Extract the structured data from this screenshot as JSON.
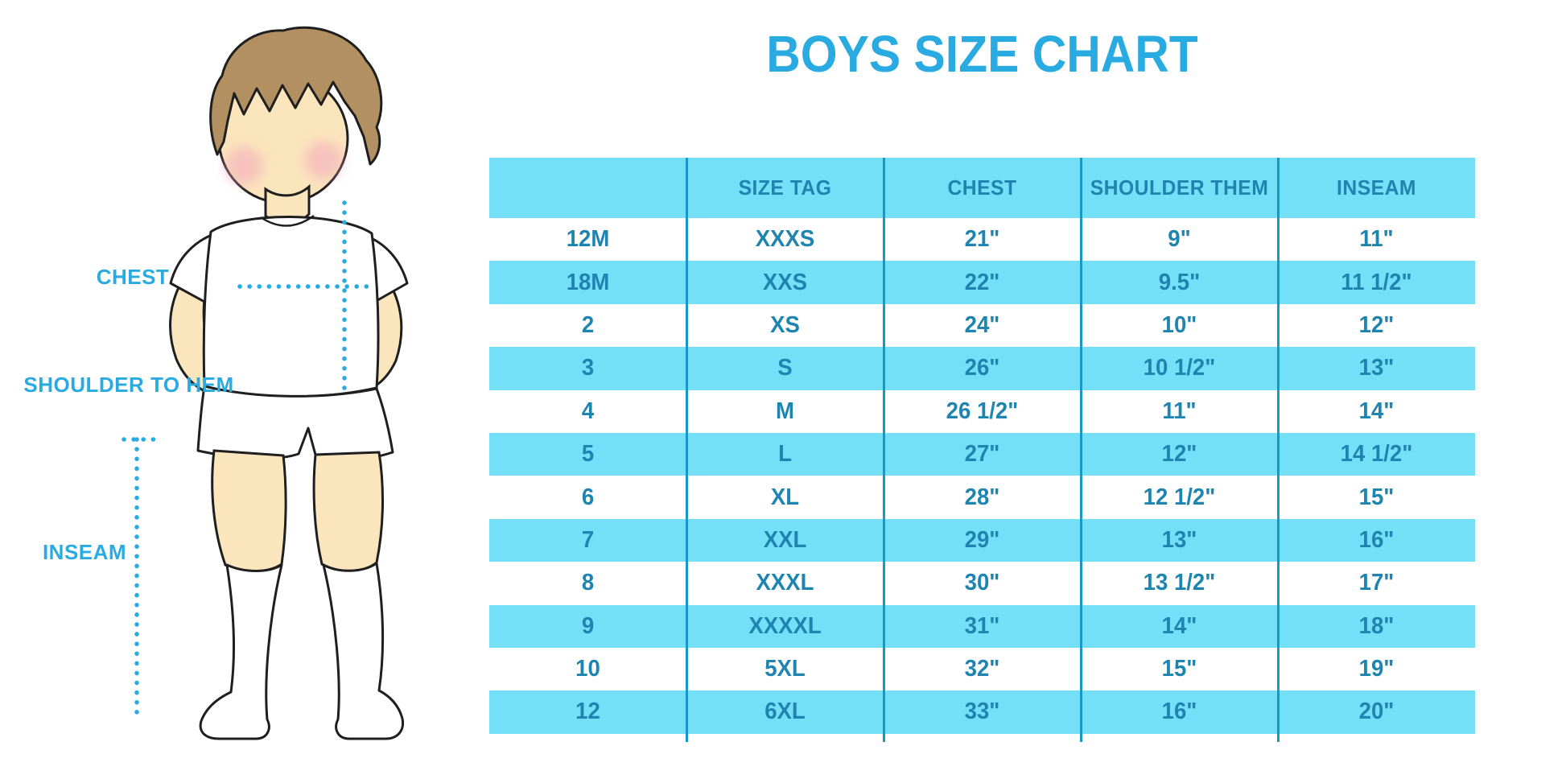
{
  "page": {
    "title": "BOYS SIZE CHART"
  },
  "figure": {
    "illustration": "boy-front-standing",
    "labels": {
      "chest": "CHEST",
      "shoulder_to_hem": "SHOULDER TO HEM",
      "inseam": "INSEAM"
    }
  },
  "chart_data": {
    "type": "table",
    "title": "BOYS SIZE CHART",
    "columns": [
      "",
      "SIZE TAG",
      "CHEST",
      "SHOULDER THEM",
      "INSEAM"
    ],
    "rows": [
      [
        "12M",
        "XXXS",
        "21\"",
        "9\"",
        "11\""
      ],
      [
        "18M",
        "XXS",
        "22\"",
        "9.5\"",
        "11 1/2\""
      ],
      [
        "2",
        "XS",
        "24\"",
        "10\"",
        "12\""
      ],
      [
        "3",
        "S",
        "26\"",
        "10 1/2\"",
        "13\""
      ],
      [
        "4",
        "M",
        "26 1/2\"",
        "11\"",
        "14\""
      ],
      [
        "5",
        "L",
        "27\"",
        "12\"",
        "14 1/2\""
      ],
      [
        "6",
        "XL",
        "28\"",
        "12 1/2\"",
        "15\""
      ],
      [
        "7",
        "XXL",
        "29\"",
        "13\"",
        "16\""
      ],
      [
        "8",
        "XXXL",
        "30\"",
        "13 1/2\"",
        "17\""
      ],
      [
        "9",
        "XXXXL",
        "31\"",
        "14\"",
        "18\""
      ],
      [
        "10",
        "5XL",
        "32\"",
        "15\"",
        "19\""
      ],
      [
        "12",
        "6XL",
        "33\"",
        "16\"",
        "20\""
      ]
    ],
    "row_striping": "alternating white / cyan bands, no horizontal grid lines",
    "legend_position": "none",
    "grid": "vertical column separators only"
  },
  "colors": {
    "accent_blue": "#29ABE2",
    "band_cyan": "#74E0F8",
    "table_text": "#1E84B0",
    "grid_line": "#1798C6",
    "skin": "#FBE5BD",
    "hair": "#B39062",
    "outline": "#1F1F1F",
    "cheek_pink": "#F2A8BC"
  }
}
